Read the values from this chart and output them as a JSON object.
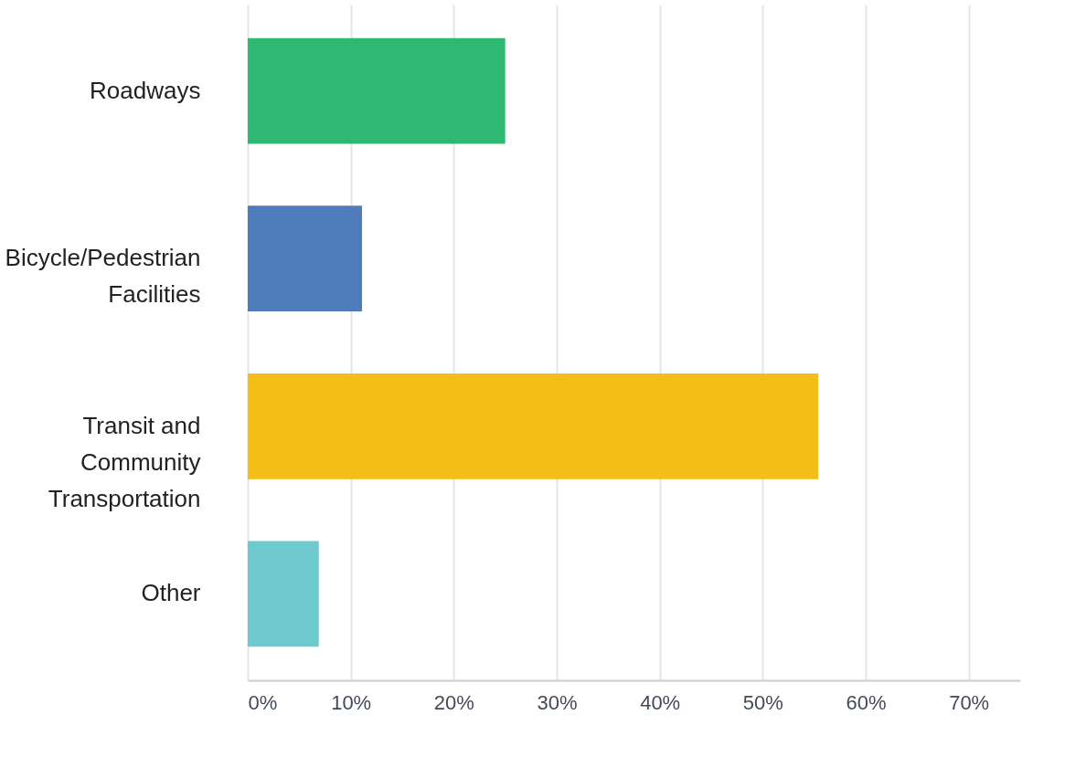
{
  "chart_data": {
    "type": "bar",
    "orientation": "horizontal",
    "categories": [
      "Roadways",
      "Bicycle/Pedestrian Facilities",
      "Transit and Community Transportation",
      "Other"
    ],
    "values": [
      25,
      11.1,
      55.4,
      6.9
    ],
    "colors": [
      "#2eb872",
      "#4f7cba",
      "#f5bd17",
      "#6ecace"
    ],
    "xlim": [
      0,
      75
    ],
    "xticks": [
      {
        "value": 0,
        "label": "0%"
      },
      {
        "value": 10,
        "label": "10%"
      },
      {
        "value": 20,
        "label": "20%"
      },
      {
        "value": 30,
        "label": "30%"
      },
      {
        "value": 40,
        "label": "40%"
      },
      {
        "value": 50,
        "label": "50%"
      },
      {
        "value": 60,
        "label": "60%"
      },
      {
        "value": 70,
        "label": "70%"
      }
    ],
    "grid": "x",
    "legend": false
  }
}
